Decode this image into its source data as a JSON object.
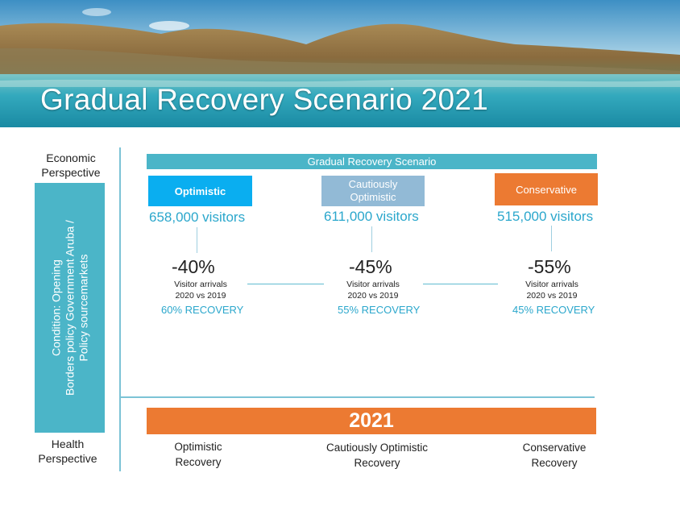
{
  "header": {
    "title": "Gradual Recovery Scenario 2021"
  },
  "axis": {
    "top_label_line1": "Economic",
    "top_label_line2": "Perspective",
    "bottom_label_line1": "Health",
    "bottom_label_line2": "Perspective"
  },
  "condition": {
    "line1": "Condition: Opening",
    "line2": "Borders policy Government Aruba /",
    "line3": "Policy sourcemarkets"
  },
  "scenario_bar": {
    "label": "Gradual Recovery Scenario"
  },
  "scenarios": [
    {
      "name": "Optimistic",
      "visitors": "658,000 visitors",
      "change": "-40%",
      "desc_line1": "Visitor arrivals",
      "desc_line2": "2020 vs 2019",
      "recovery": "60% RECOVERY",
      "bottom_line1": "Optimistic",
      "bottom_line2": "Recovery",
      "color": "#0aaef0"
    },
    {
      "name_line1": "Cautiously",
      "name_line2": "Optimistic",
      "visitors": "611,000 visitors",
      "change": "-45%",
      "desc_line1": "Visitor arrivals",
      "desc_line2": "2020 vs 2019",
      "recovery": "55% RECOVERY",
      "bottom_line1": "Cautiously Optimistic",
      "bottom_line2": "Recovery",
      "color": "#92bad6"
    },
    {
      "name": "Conservative",
      "visitors": "515,000 visitors",
      "change": "-55%",
      "desc_line1": "Visitor arrivals",
      "desc_line2": "2020 vs 2019",
      "recovery": "45% RECOVERY",
      "bottom_line1": "Conservative",
      "bottom_line2": "Recovery",
      "color": "#ec7a32"
    }
  ],
  "year_bar": {
    "label": "2021"
  },
  "colors": {
    "teal": "#4bb5c8",
    "orange": "#ec7a32",
    "blue_text": "#2ba7cc"
  }
}
